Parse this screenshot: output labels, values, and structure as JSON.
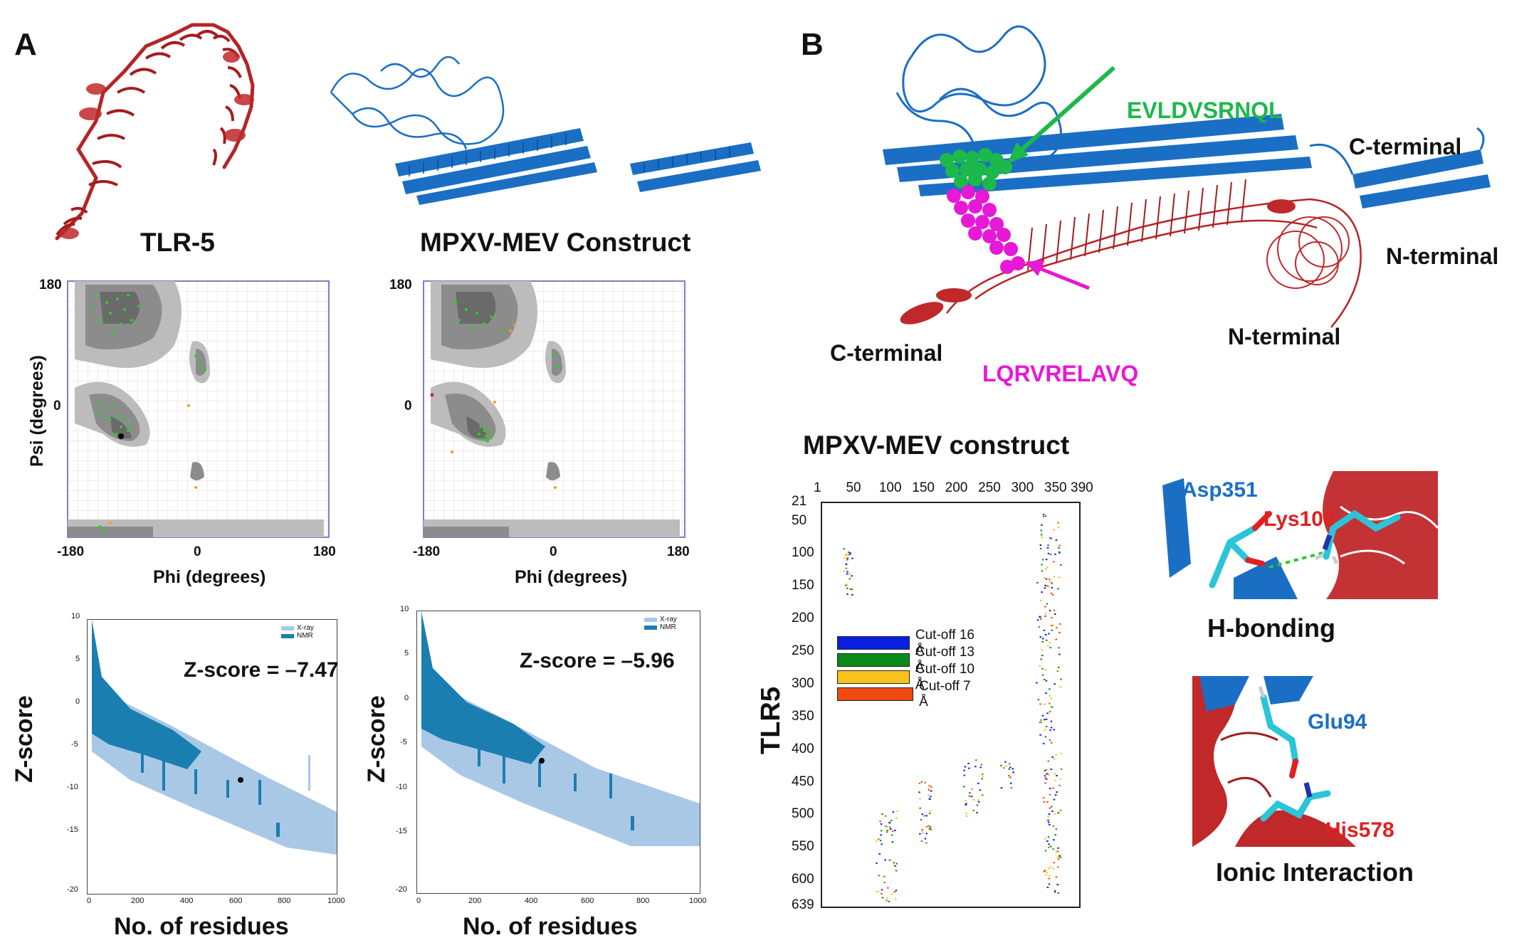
{
  "panels": {
    "a": "A",
    "b": "B"
  },
  "structures": {
    "tlr5_label": "TLR-5",
    "mev_label": "MPXV-MEV Construct"
  },
  "ramachandran": {
    "xlabel": "Phi (degrees)",
    "ylabel": "Psi (degrees)",
    "xticks": [
      "-180",
      "0",
      "180"
    ],
    "yticks": [
      "180",
      "0"
    ],
    "xlim": [
      -180,
      180
    ],
    "ylim": [
      -180,
      180
    ],
    "grid": true
  },
  "zplot": {
    "xlabel": "No. of residues",
    "ylabel": "Z-score",
    "xticks": [
      "0",
      "200",
      "400",
      "600",
      "800",
      "1000"
    ],
    "yticks": [
      "10",
      "5",
      "0",
      "-5",
      "-10",
      "-15",
      "-20"
    ],
    "legend": [
      "X-ray",
      "NMR"
    ],
    "tlr5_text": "Z-score = –7.47",
    "mev_text": "Z-score = –5.96"
  },
  "complex": {
    "peptide_green": "EVLDVSRNQL",
    "peptide_magenta": "LQRVRELAVQ",
    "mev_c": "C-terminal",
    "mev_n": "N-terminal",
    "tlr_c": "C-terminal",
    "tlr_n": "N-terminal"
  },
  "contact_map": {
    "title": "MPXV-MEV construct",
    "ylabel": "TLR5",
    "xticks": [
      "1",
      "50",
      "100",
      "150",
      "200",
      "250",
      "300",
      "350",
      "390"
    ],
    "yticks": [
      "21",
      "50",
      "100",
      "150",
      "200",
      "250",
      "300",
      "350",
      "400",
      "450",
      "500",
      "550",
      "600",
      "639"
    ],
    "legend": [
      {
        "label": "Cut-off 16 Å",
        "color": "#0a1fe0"
      },
      {
        "label": "Cut-off 13 Å",
        "color": "#0b8a1a"
      },
      {
        "label": "Cut-off 10 Å",
        "color": "#f7c21a"
      },
      {
        "label": "Cut-off 7 Å",
        "color": "#f04a10"
      }
    ]
  },
  "interactions": {
    "hbond_res1": "Asp351",
    "hbond_res2": "Lys106",
    "hbond_caption": "H-bonding",
    "ionic_res1": "Glu94",
    "ionic_res2": "His578",
    "ionic_caption": "Ionic Interaction"
  },
  "colors": {
    "tlr5": "#c0282a",
    "mev": "#1a6fc4",
    "green_peptide": "#1db84b",
    "magenta_peptide": "#e619d6",
    "xray": "#a9c8e6",
    "nmr": "#1a7fb0"
  }
}
